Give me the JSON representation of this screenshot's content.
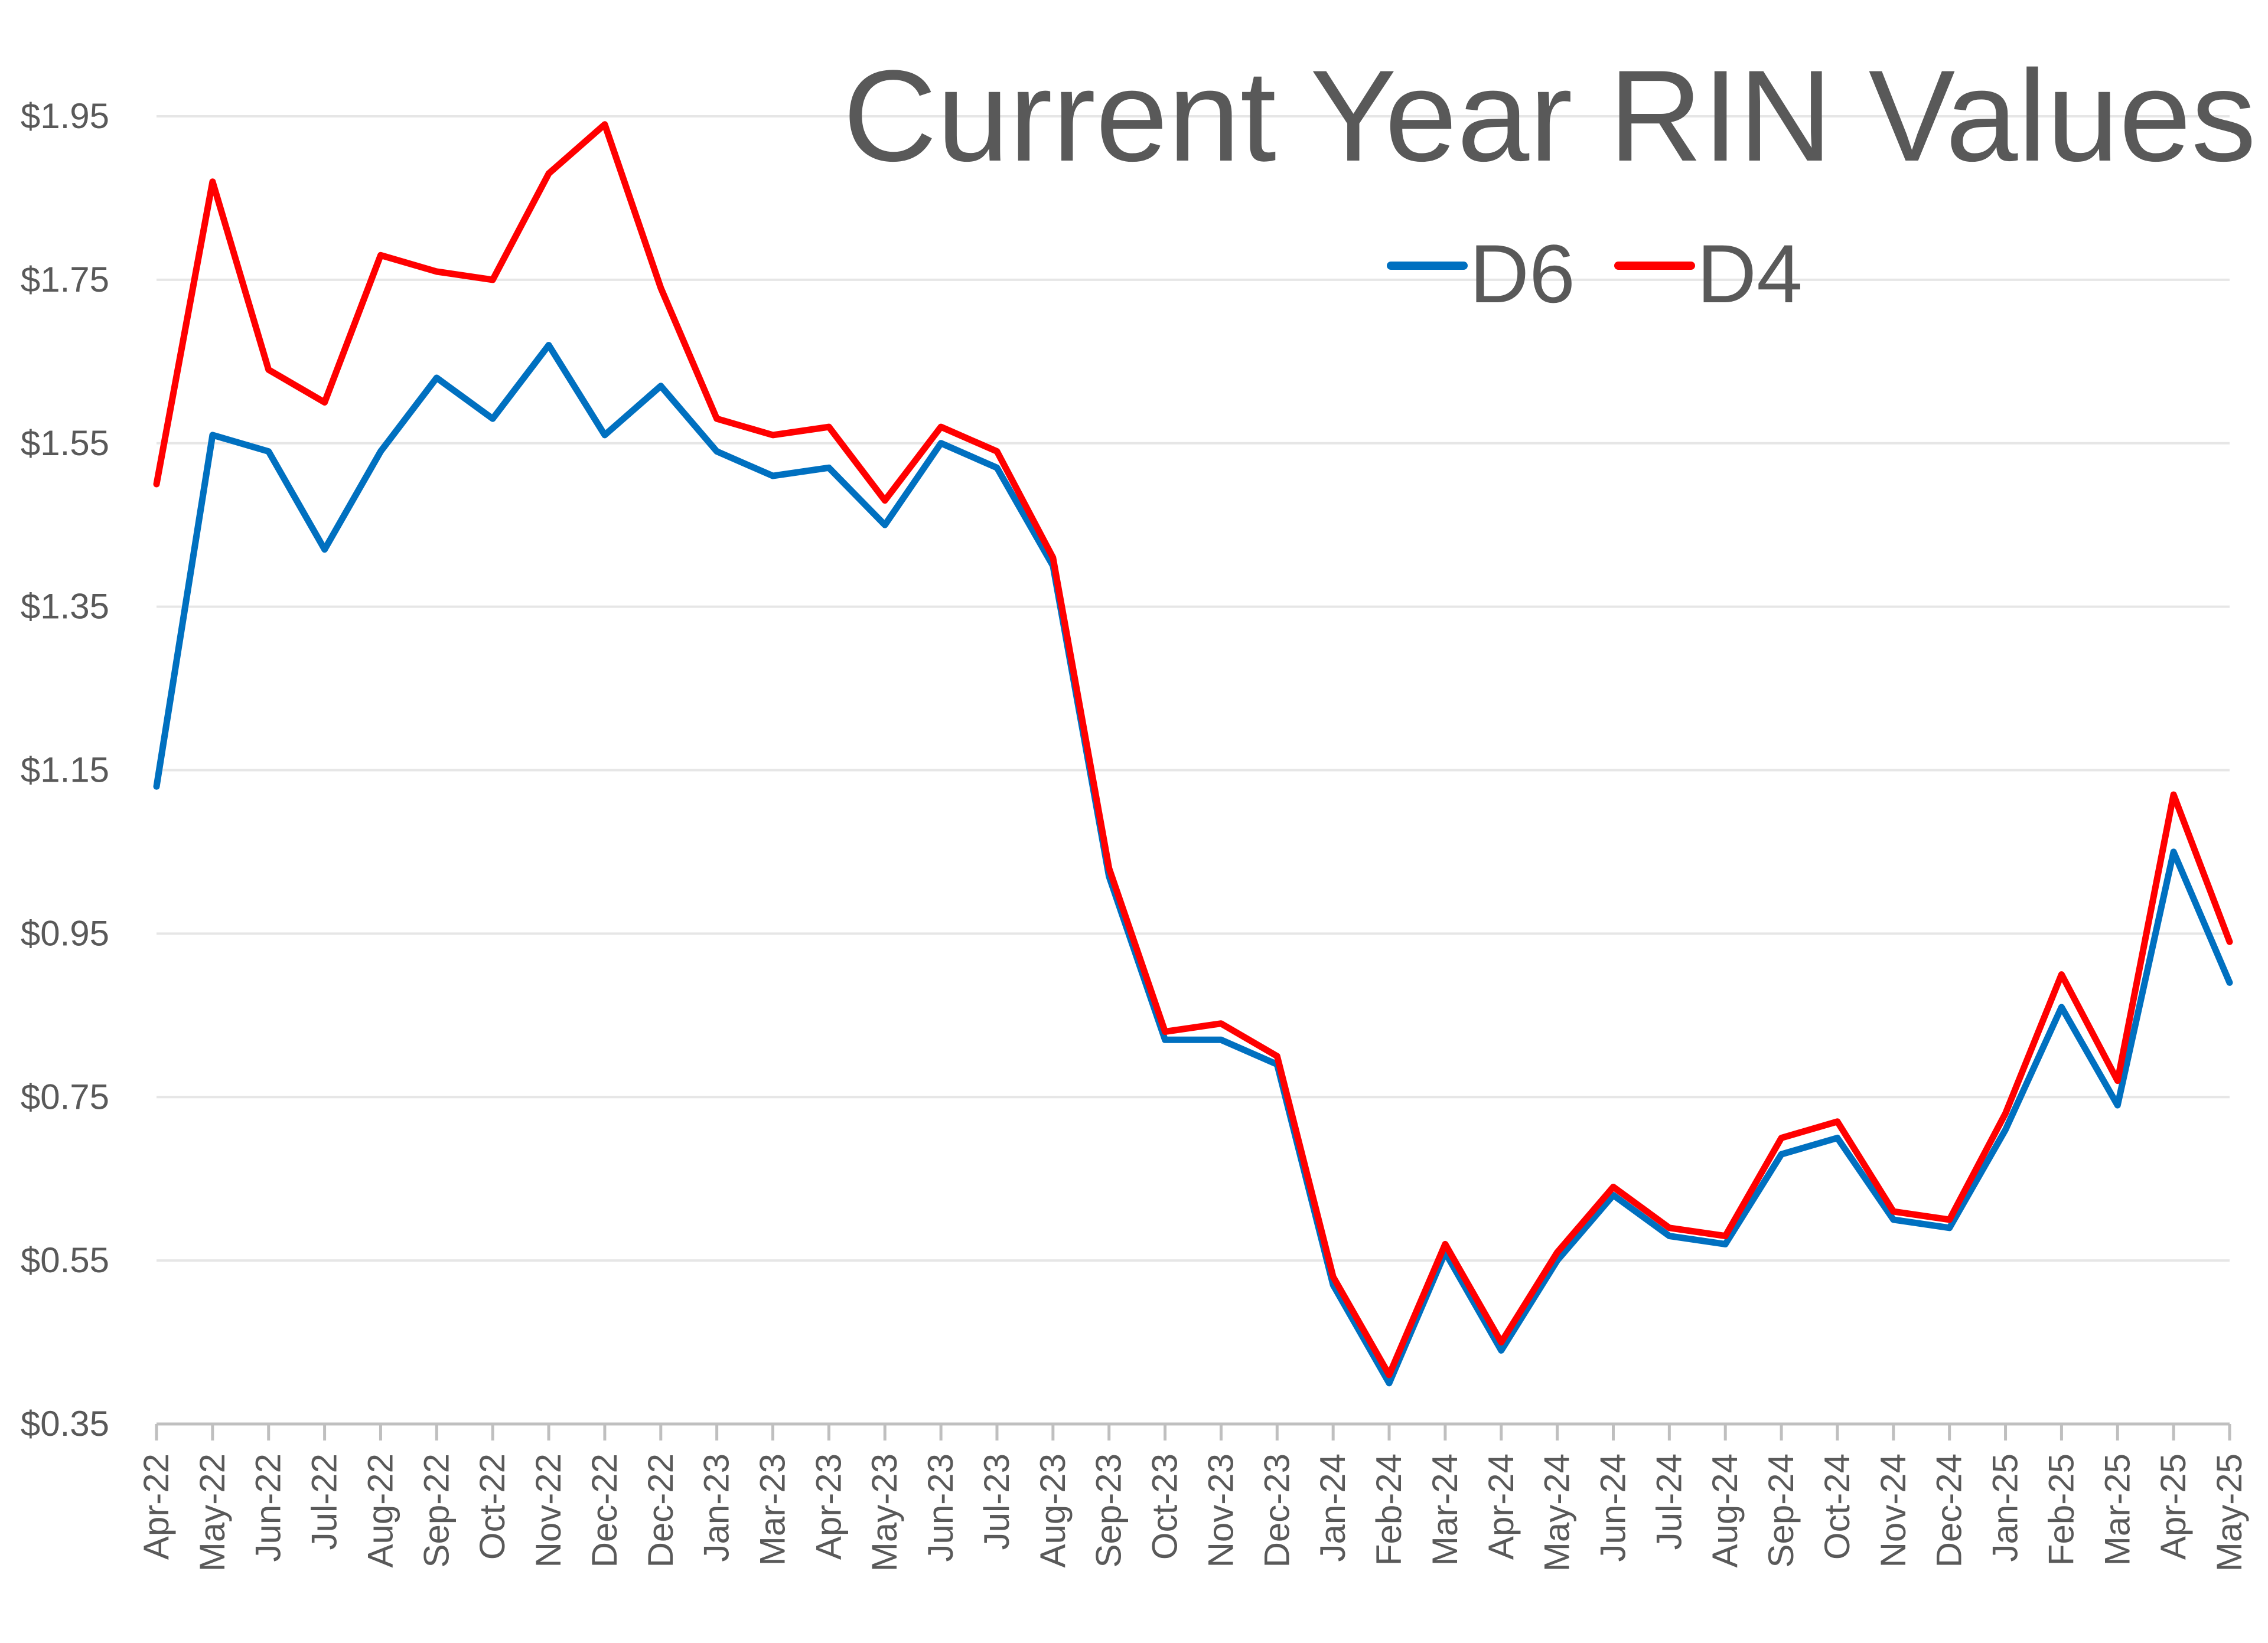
{
  "chart_data": {
    "type": "line",
    "title": "Current Year RIN Values",
    "xlabel": "",
    "ylabel": "",
    "ylim": [
      0.35,
      1.95
    ],
    "yticks": [
      "$1.95",
      "$1.75",
      "$1.55",
      "$1.35",
      "$1.15",
      "$0.95",
      "$0.75",
      "$0.55",
      "$0.35"
    ],
    "ytick_values": [
      1.95,
      1.75,
      1.55,
      1.35,
      1.15,
      0.95,
      0.75,
      0.55,
      0.35
    ],
    "categories": [
      "Apr-22",
      "May-22",
      "Jun-22",
      "Jul-22",
      "Aug-22",
      "Sep-22",
      "Oct-22",
      "Nov-22",
      "Dec-22",
      "Dec-22",
      "Jan-23",
      "Mar-23",
      "Apr-23",
      "May-23",
      "Jun-23",
      "Jul-23",
      "Aug-23",
      "Sep-23",
      "Oct-23",
      "Nov-23",
      "Dec-23",
      "Jan-24",
      "Feb-24",
      "Mar-24",
      "Apr-24",
      "May-24",
      "Jun-24",
      "Jul-24",
      "Aug-24",
      "Sep-24",
      "Oct-24",
      "Nov-24",
      "Dec-24",
      "Jan-25",
      "Feb-25",
      "Mar-25",
      "Apr-25",
      "May-25"
    ],
    "grid": true,
    "legend": "top-center",
    "series": [
      {
        "name": "D6",
        "color": "#0070C0",
        "values": [
          1.13,
          1.56,
          1.54,
          1.42,
          1.54,
          1.63,
          1.58,
          1.67,
          1.56,
          1.62,
          1.54,
          1.51,
          1.52,
          1.45,
          1.55,
          1.52,
          1.4,
          1.02,
          0.82,
          0.82,
          0.79,
          0.52,
          0.4,
          0.56,
          0.44,
          0.55,
          0.63,
          0.58,
          0.57,
          0.68,
          0.7,
          0.6,
          0.59,
          0.71,
          0.86,
          0.74,
          1.05,
          0.89
        ]
      },
      {
        "name": "D4",
        "color": "#FF0000",
        "values": [
          1.5,
          1.87,
          1.64,
          1.6,
          1.78,
          1.76,
          1.75,
          1.88,
          1.94,
          1.74,
          1.58,
          1.56,
          1.57,
          1.48,
          1.57,
          1.54,
          1.41,
          1.03,
          0.83,
          0.84,
          0.8,
          0.53,
          0.41,
          0.57,
          0.45,
          0.56,
          0.64,
          0.59,
          0.58,
          0.7,
          0.72,
          0.61,
          0.6,
          0.73,
          0.9,
          0.77,
          1.12,
          0.94
        ]
      }
    ]
  },
  "legend": {
    "d6_label": "D6",
    "d4_label": "D4"
  }
}
